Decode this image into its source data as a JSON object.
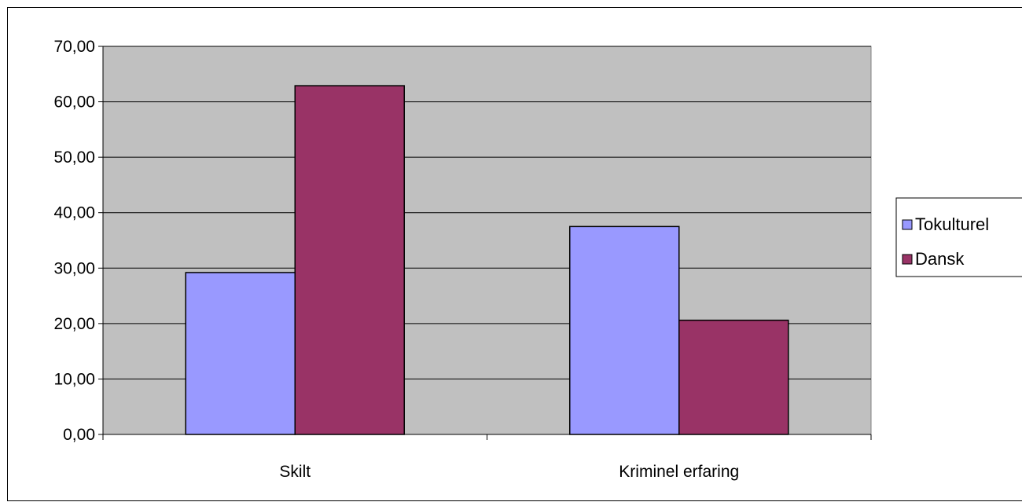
{
  "chart_data": {
    "type": "bar",
    "title": "",
    "xlabel": "",
    "ylabel": "",
    "categories": [
      "Skilt",
      "Kriminel erfaring"
    ],
    "series": [
      {
        "name": "Tokulturel",
        "values": [
          29.2,
          37.5
        ],
        "color": "#9999ff"
      },
      {
        "name": "Dansk",
        "values": [
          62.9,
          20.6
        ],
        "color": "#993366"
      }
    ],
    "ylim": [
      0,
      70
    ],
    "yticks": [
      0,
      10,
      20,
      30,
      40,
      50,
      60,
      70
    ],
    "ytick_labels": [
      "0,00",
      "10,00",
      "20,00",
      "30,00",
      "40,00",
      "50,00",
      "60,00",
      "70,00"
    ],
    "grid": true,
    "plot_background": "#c0c0c0",
    "legend_position": "right"
  }
}
